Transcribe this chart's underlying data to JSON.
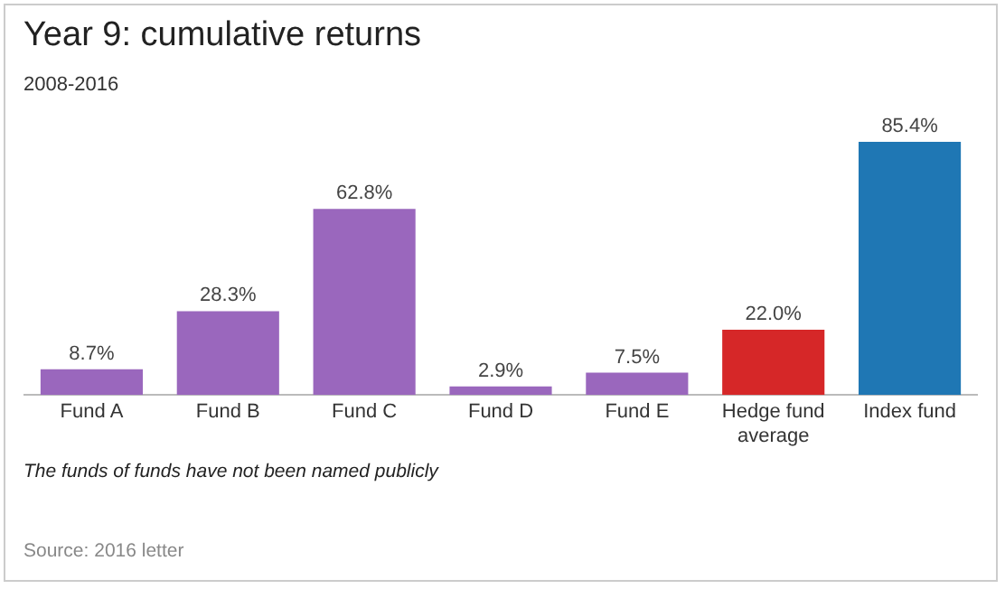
{
  "chart_data": {
    "type": "bar",
    "title": "Year 9: cumulative returns",
    "subtitle": "2008-2016",
    "categories": [
      "Fund A",
      "Fund B",
      "Fund C",
      "Fund D",
      "Fund E",
      "Hedge fund average",
      "Index fund"
    ],
    "values": [
      8.7,
      28.3,
      62.8,
      2.9,
      7.5,
      22.0,
      85.4
    ],
    "colors": [
      "#9a67bd",
      "#9a67bd",
      "#9a67bd",
      "#9a67bd",
      "#9a67bd",
      "#d62728",
      "#1f77b4"
    ],
    "value_labels": [
      "8.7%",
      "28.3%",
      "62.8%",
      "2.9%",
      "7.5%",
      "22.0%",
      "85.4%"
    ],
    "grid": false,
    "legend": false,
    "annotations": [
      "The funds of funds have not been named publicly",
      "Source: 2016 letter"
    ]
  }
}
